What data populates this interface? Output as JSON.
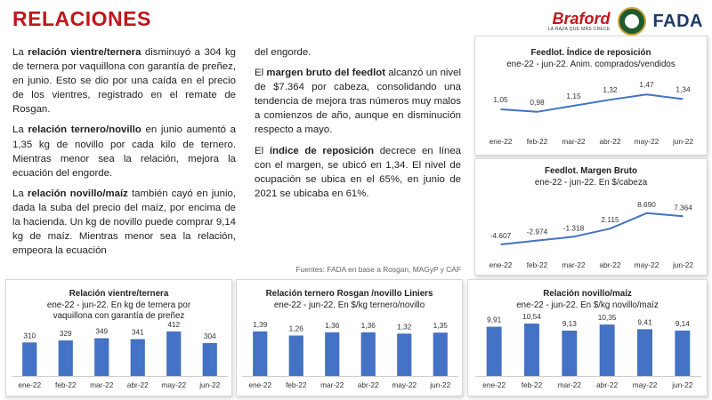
{
  "header": {
    "title": "RELACIONES"
  },
  "logos": {
    "braford_name": "Braford",
    "braford_tagline": "LA RAZA QUE MÁS CRECE",
    "fada_name": "FADA"
  },
  "text": {
    "p1_bold": "relación vientre/ternera",
    "p1_a": "La ",
    "p1_b": " disminuyó a 304 kg de ternera por vaquillona con garantía de preñez, en junio. Esto se dio por una caída en el precio de los vientres, registrado en el remate de Rosgan.",
    "p2_bold": "relación ternero/novillo",
    "p2_a": "La ",
    "p2_b": " en junio aumentó a 1,35 kg de novillo por cada kilo de ternero. Mientras menor sea la relación, mejora la ecuación del engorde.",
    "p3_bold": "relación novillo/maíz",
    "p3_a": "La ",
    "p3_b": " también cayó en junio, dada la suba del precio del maíz, por encima de la hacienda. Un kg de novillo puede comprar 9,14 kg de maíz. Mientras menor sea la relación, empeora la ecuación",
    "p3_cont": "del engorde.",
    "p4_a": "El ",
    "p4_bold": "margen bruto del feedlot",
    "p4_b": " alcanzó un nivel de $7.364 por cabeza, consolidando una tendencia de mejora tras números muy malos a comienzos de año, aunque en disminución respecto a mayo.",
    "p5_a": "El ",
    "p5_bold": "índice de reposición",
    "p5_b": " decrece en línea con el margen, se ubicó en 1,34. El nivel de ocupación se ubica en el 65%, en junio de 2021 se ubicaba en 61%.",
    "source": "Fuentes: FADA en base a Rosgan, MAGyP y CAF"
  },
  "colors": {
    "title_red": "#c0161b",
    "bar_blue": "#4472c4",
    "line_blue": "#4472c4"
  },
  "chart_data": [
    {
      "id": "indice",
      "type": "line",
      "title": "Feedlot. Índice de reposición",
      "subtitle": "ene-22 - jun-22. Anim. comprados/vendidos",
      "categories": [
        "ene-22",
        "feb-22",
        "mar-22",
        "abr-22",
        "may-22",
        "jun-22"
      ],
      "values": [
        1.05,
        0.98,
        1.15,
        1.32,
        1.47,
        1.34
      ],
      "labels": [
        "1,05",
        "0,98",
        "1,15",
        "1,32",
        "1,47",
        "1,34"
      ],
      "ylim": [
        0.6,
        1.9
      ]
    },
    {
      "id": "margen",
      "type": "line",
      "title": "Feedlot. Margen Bruto",
      "subtitle": "ene-22 - jun-22. En $/cabeza",
      "categories": [
        "ene-22",
        "feb-22",
        "mar-22",
        "abr-22",
        "may-22",
        "jun-22"
      ],
      "values": [
        -4607,
        -2974,
        -1318,
        2115,
        8690,
        7364
      ],
      "labels": [
        "-4.607",
        "-2.974",
        "-1.318",
        "2.115",
        "8.690",
        "7.364"
      ],
      "ylim": [
        -8000,
        12000
      ]
    },
    {
      "id": "vientre",
      "type": "bar",
      "title": "Relación vientre/ternera",
      "subtitle": "ene-22 - jun-22. En kg de ternera por vaquillona con garantía de preñez",
      "categories": [
        "ene-22",
        "feb-22",
        "mar-22",
        "abr-22",
        "may-22",
        "jun-22"
      ],
      "values": [
        310,
        329,
        349,
        341,
        412,
        304
      ],
      "labels": [
        "310",
        "329",
        "349",
        "341",
        "412",
        "304"
      ],
      "ylim": [
        0,
        460
      ]
    },
    {
      "id": "ternero",
      "type": "bar",
      "title": "Relación ternero Rosgan /novillo Liniers",
      "subtitle": "ene-22 - jun-22. En $/kg ternero/novillo",
      "categories": [
        "ene-22",
        "feb-22",
        "mar-22",
        "abr-22",
        "may-22",
        "jun-22"
      ],
      "values": [
        1.39,
        1.26,
        1.36,
        1.36,
        1.32,
        1.35
      ],
      "labels": [
        "1,39",
        "1,26",
        "1,36",
        "1,36",
        "1,32",
        "1,35"
      ],
      "ylim": [
        0,
        1.55
      ]
    },
    {
      "id": "novillo",
      "type": "bar",
      "title": "Relación novillo/maíz",
      "subtitle": "ene-22 - jun-22. En $/kg novillo/maíz",
      "categories": [
        "ene-22",
        "feb-22",
        "mar-22",
        "abr-22",
        "may-22",
        "jun-22"
      ],
      "values": [
        9.91,
        10.54,
        9.13,
        10.35,
        9.41,
        9.14
      ],
      "labels": [
        "9,91",
        "10,54",
        "9,13",
        "10,35",
        "9,41",
        "9,14"
      ],
      "ylim": [
        0,
        11.8
      ]
    }
  ]
}
